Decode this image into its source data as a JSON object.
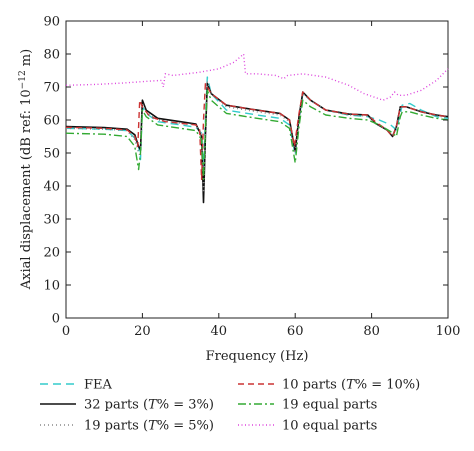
{
  "chart_data": {
    "type": "line",
    "xlabel": "Frequency (Hz)",
    "ylabel": "Axial displacement (dB ref: 10",
    "ylabel_exp": "−12",
    "ylabel_tail": " m)",
    "xlim": [
      0,
      100
    ],
    "ylim": [
      0,
      90
    ],
    "x_ticks": [
      "0",
      "20",
      "40",
      "60",
      "80",
      "100"
    ],
    "y_ticks": [
      "0",
      "10",
      "20",
      "30",
      "40",
      "50",
      "60",
      "70",
      "80",
      "90"
    ],
    "grid": false,
    "legend_position": "bottom",
    "series": [
      {
        "name": "FEA",
        "legend_label": "FEA",
        "color": "#33cccc",
        "dash": "8,5",
        "points": [
          [
            0,
            57.5
          ],
          [
            10,
            57.2
          ],
          [
            16,
            56.8
          ],
          [
            18,
            54.5
          ],
          [
            19,
            52
          ],
          [
            19.5,
            48
          ],
          [
            20,
            64
          ],
          [
            21,
            62
          ],
          [
            24,
            59.5
          ],
          [
            30,
            58.5
          ],
          [
            34,
            57.8
          ],
          [
            35.5,
            56
          ],
          [
            36,
            45
          ],
          [
            36.5,
            60
          ],
          [
            37,
            73
          ],
          [
            38,
            68
          ],
          [
            42,
            63
          ],
          [
            50,
            61.5
          ],
          [
            56,
            60.5
          ],
          [
            58.5,
            58.5
          ],
          [
            60,
            49.5
          ],
          [
            61,
            60
          ],
          [
            62,
            68
          ],
          [
            64,
            66
          ],
          [
            68,
            63
          ],
          [
            74,
            61.5
          ],
          [
            79,
            61
          ],
          [
            82,
            60
          ],
          [
            85,
            58.5
          ],
          [
            86.5,
            57
          ],
          [
            87.5,
            62
          ],
          [
            88,
            64.5
          ],
          [
            90,
            65
          ],
          [
            93,
            63
          ],
          [
            97,
            61
          ],
          [
            100,
            60.5
          ]
        ]
      },
      {
        "name": "32 parts",
        "legend_label": "32 parts (",
        "legend_ital": "T",
        "legend_rest": "% = 3%)",
        "color": "#111111",
        "dash": "",
        "points": [
          [
            0,
            58
          ],
          [
            10,
            57.7
          ],
          [
            16,
            57.2
          ],
          [
            18,
            55.5
          ],
          [
            19,
            52
          ],
          [
            19.5,
            51
          ],
          [
            20,
            66
          ],
          [
            21,
            63
          ],
          [
            24,
            60.5
          ],
          [
            30,
            59.5
          ],
          [
            34,
            58.8
          ],
          [
            35.5,
            55
          ],
          [
            36,
            35
          ],
          [
            36.5,
            55
          ],
          [
            37,
            71
          ],
          [
            38,
            68
          ],
          [
            42,
            64.5
          ],
          [
            50,
            63
          ],
          [
            56,
            62
          ],
          [
            58.5,
            60
          ],
          [
            60,
            50.5
          ],
          [
            61,
            61
          ],
          [
            62,
            68.5
          ],
          [
            64,
            66
          ],
          [
            68,
            63
          ],
          [
            74,
            61.8
          ],
          [
            79,
            61.5
          ],
          [
            81,
            59
          ],
          [
            84,
            57
          ],
          [
            85.5,
            55
          ],
          [
            86.5,
            58
          ],
          [
            87.5,
            64
          ],
          [
            89,
            64
          ],
          [
            93,
            62.5
          ],
          [
            97,
            61.5
          ],
          [
            100,
            61
          ]
        ]
      },
      {
        "name": "19 parts",
        "legend_label": "19 parts (",
        "legend_ital": "T",
        "legend_rest": "% = 5%)",
        "color": "#888888",
        "dash": "1,3",
        "points": [
          [
            0,
            57.5
          ],
          [
            10,
            57.2
          ],
          [
            16,
            56.8
          ],
          [
            18,
            54
          ],
          [
            19,
            50
          ],
          [
            19.5,
            49
          ],
          [
            20,
            65
          ],
          [
            21,
            62.5
          ],
          [
            24,
            60
          ],
          [
            30,
            59
          ],
          [
            34,
            58.5
          ],
          [
            35.5,
            55
          ],
          [
            36,
            38
          ],
          [
            36.5,
            55
          ],
          [
            37,
            71.5
          ],
          [
            38,
            68
          ],
          [
            42,
            64
          ],
          [
            50,
            62.5
          ],
          [
            56,
            61.5
          ],
          [
            58.5,
            59.5
          ],
          [
            60,
            50
          ],
          [
            61,
            60.5
          ],
          [
            62,
            68
          ],
          [
            64,
            66
          ],
          [
            68,
            63
          ],
          [
            74,
            61.5
          ],
          [
            79,
            61.2
          ],
          [
            81,
            59
          ],
          [
            84,
            57
          ],
          [
            85.5,
            55.5
          ],
          [
            86.5,
            58
          ],
          [
            87.5,
            64
          ],
          [
            89,
            64
          ],
          [
            93,
            62.5
          ],
          [
            97,
            61.2
          ],
          [
            100,
            60.8
          ]
        ]
      },
      {
        "name": "10 parts",
        "legend_label": "10 parts (",
        "legend_ital": "T",
        "legend_rest": "% = 10%)",
        "color": "#cc3333",
        "dash": "6,4",
        "points": [
          [
            0,
            57.8
          ],
          [
            10,
            57.5
          ],
          [
            16,
            57
          ],
          [
            18,
            55
          ],
          [
            18.8,
            52
          ],
          [
            19.3,
            66
          ],
          [
            20,
            64
          ],
          [
            22,
            61
          ],
          [
            26,
            59.5
          ],
          [
            30,
            59
          ],
          [
            34,
            58.5
          ],
          [
            35,
            57
          ],
          [
            35.5,
            42
          ],
          [
            36,
            60
          ],
          [
            36.5,
            71
          ],
          [
            38,
            68
          ],
          [
            42,
            64.5
          ],
          [
            50,
            63
          ],
          [
            56,
            62
          ],
          [
            58.5,
            60
          ],
          [
            59.8,
            52
          ],
          [
            61,
            62
          ],
          [
            62,
            68.5
          ],
          [
            64,
            66
          ],
          [
            68,
            63
          ],
          [
            74,
            61.8
          ],
          [
            79,
            61.5
          ],
          [
            81,
            59.5
          ],
          [
            84,
            57
          ],
          [
            85.5,
            55
          ],
          [
            86.5,
            58
          ],
          [
            87.5,
            64
          ],
          [
            89,
            64
          ],
          [
            93,
            62.5
          ],
          [
            97,
            61.5
          ],
          [
            100,
            61
          ]
        ]
      },
      {
        "name": "19 equal parts",
        "legend_label": "19 equal parts",
        "color": "#33aa33",
        "dash": "8,3,2,3",
        "points": [
          [
            0,
            56
          ],
          [
            10,
            55.7
          ],
          [
            16,
            55
          ],
          [
            18,
            52
          ],
          [
            19,
            45
          ],
          [
            19.5,
            50
          ],
          [
            20,
            63
          ],
          [
            21,
            61
          ],
          [
            24,
            58.5
          ],
          [
            30,
            57.5
          ],
          [
            34,
            56.8
          ],
          [
            35.5,
            54
          ],
          [
            36,
            42
          ],
          [
            36.5,
            58
          ],
          [
            37,
            69
          ],
          [
            38,
            66
          ],
          [
            42,
            62
          ],
          [
            50,
            60.5
          ],
          [
            56,
            59.5
          ],
          [
            58.5,
            57.5
          ],
          [
            60,
            47
          ],
          [
            61,
            58
          ],
          [
            62,
            66
          ],
          [
            64,
            64
          ],
          [
            68,
            61.5
          ],
          [
            74,
            60.5
          ],
          [
            79,
            60
          ],
          [
            82,
            58.5
          ],
          [
            85,
            56.5
          ],
          [
            86.5,
            55
          ],
          [
            87.5,
            61
          ],
          [
            88,
            62.5
          ],
          [
            90,
            62.5
          ],
          [
            93,
            61.5
          ],
          [
            97,
            60.5
          ],
          [
            100,
            60
          ]
        ]
      },
      {
        "name": "10 equal parts",
        "legend_label": "10 equal parts",
        "color": "#dd44dd",
        "dash": "1,2.5",
        "points": [
          [
            0,
            70.5
          ],
          [
            8,
            70.8
          ],
          [
            15,
            71.2
          ],
          [
            22,
            71.8
          ],
          [
            25,
            72
          ],
          [
            25.5,
            70
          ],
          [
            26,
            74
          ],
          [
            28,
            73.5
          ],
          [
            35,
            74.5
          ],
          [
            40,
            75.5
          ],
          [
            44,
            77.5
          ],
          [
            46,
            79.5
          ],
          [
            46.5,
            80
          ],
          [
            47,
            74
          ],
          [
            50,
            74
          ],
          [
            55,
            73.5
          ],
          [
            57,
            72.5
          ],
          [
            58,
            73.5
          ],
          [
            62,
            74
          ],
          [
            68,
            73
          ],
          [
            74,
            70.5
          ],
          [
            78,
            68
          ],
          [
            83,
            66
          ],
          [
            85,
            67
          ],
          [
            86,
            68.5
          ],
          [
            87,
            67.5
          ],
          [
            89,
            67.5
          ],
          [
            93,
            69
          ],
          [
            97,
            72
          ],
          [
            100,
            75.5
          ]
        ]
      }
    ]
  }
}
